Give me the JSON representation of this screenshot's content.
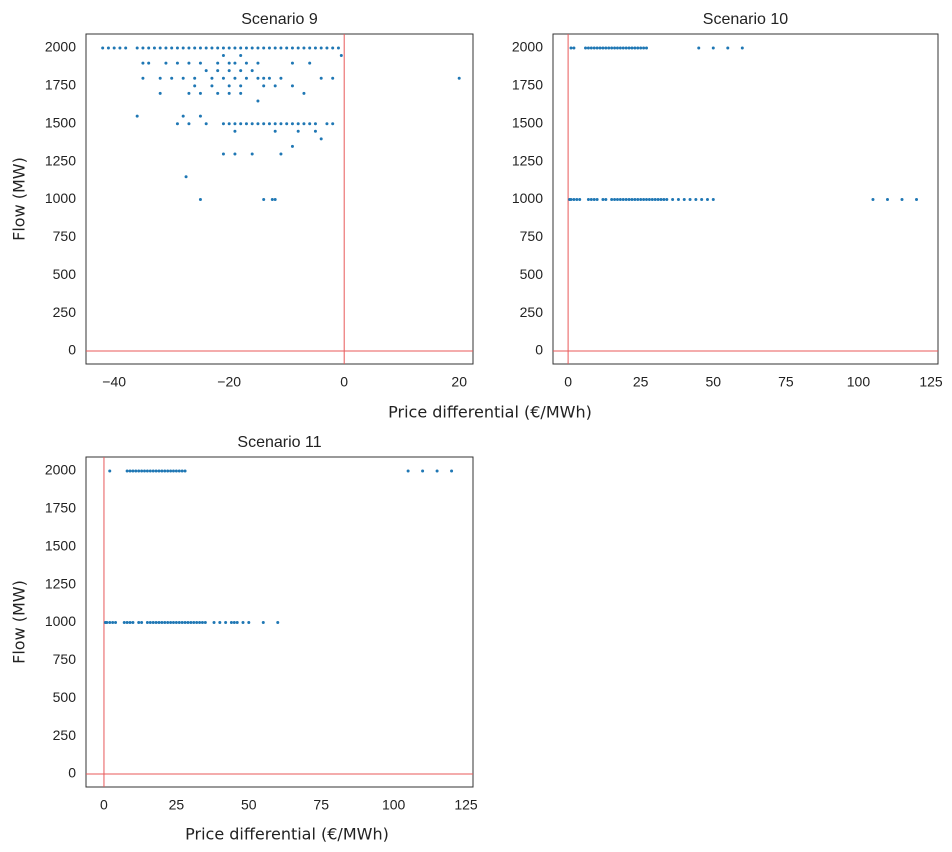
{
  "chart_data": [
    {
      "type": "scatter",
      "title": "Scenario 9",
      "ylabel": "Flow (MW)",
      "color": "#1f77b4",
      "xlim": [
        -44.9,
        22.4
      ],
      "ylim": [
        -86,
        2092
      ],
      "xticks": [
        {
          "value": -40,
          "label": "−40"
        },
        {
          "value": -20,
          "label": "−20"
        },
        0,
        20
      ],
      "yticks": [
        0,
        250,
        500,
        750,
        1000,
        1250,
        1500,
        1750,
        2000
      ],
      "reference_lines": {
        "x": 0,
        "y": 0,
        "color": "#e8595a"
      },
      "points": [
        [
          -42,
          2000
        ],
        [
          -41,
          2000
        ],
        [
          -40,
          2000
        ],
        [
          -39,
          2000
        ],
        [
          -38,
          2000
        ],
        [
          -36,
          2000
        ],
        [
          -35,
          2000
        ],
        [
          -34,
          2000
        ],
        [
          -33,
          2000
        ],
        [
          -32,
          2000
        ],
        [
          -31,
          2000
        ],
        [
          -30,
          2000
        ],
        [
          -29,
          2000
        ],
        [
          -28,
          2000
        ],
        [
          -27,
          2000
        ],
        [
          -26,
          2000
        ],
        [
          -25,
          2000
        ],
        [
          -24,
          2000
        ],
        [
          -23,
          2000
        ],
        [
          -22,
          2000
        ],
        [
          -21,
          2000
        ],
        [
          -20,
          2000
        ],
        [
          -19,
          2000
        ],
        [
          -18,
          2000
        ],
        [
          -17,
          2000
        ],
        [
          -16,
          2000
        ],
        [
          -15,
          2000
        ],
        [
          -14,
          2000
        ],
        [
          -13,
          2000
        ],
        [
          -12,
          2000
        ],
        [
          -11,
          2000
        ],
        [
          -10,
          2000
        ],
        [
          -9,
          2000
        ],
        [
          -8,
          2000
        ],
        [
          -7,
          2000
        ],
        [
          -6,
          2000
        ],
        [
          -5,
          2000
        ],
        [
          -4,
          2000
        ],
        [
          -3,
          2000
        ],
        [
          -2,
          2000
        ],
        [
          -1,
          2000
        ],
        [
          -0.5,
          1950
        ],
        [
          -21,
          1950
        ],
        [
          -18,
          1950
        ],
        [
          -35,
          1900
        ],
        [
          -34,
          1900
        ],
        [
          -31,
          1900
        ],
        [
          -29,
          1900
        ],
        [
          -27,
          1900
        ],
        [
          -25,
          1900
        ],
        [
          -22,
          1900
        ],
        [
          -20,
          1900
        ],
        [
          -19,
          1900
        ],
        [
          -17,
          1900
        ],
        [
          -15,
          1900
        ],
        [
          -9,
          1900
        ],
        [
          -6,
          1900
        ],
        [
          -24,
          1850
        ],
        [
          -22,
          1850
        ],
        [
          -20,
          1850
        ],
        [
          -18,
          1850
        ],
        [
          -16,
          1850
        ],
        [
          -35,
          1800
        ],
        [
          -32,
          1800
        ],
        [
          -30,
          1800
        ],
        [
          -28,
          1800
        ],
        [
          -26,
          1800
        ],
        [
          -23,
          1800
        ],
        [
          -21,
          1800
        ],
        [
          -19,
          1800
        ],
        [
          -17,
          1800
        ],
        [
          -15,
          1800
        ],
        [
          -14,
          1800
        ],
        [
          -13,
          1800
        ],
        [
          -11,
          1800
        ],
        [
          -4,
          1800
        ],
        [
          -2,
          1800
        ],
        [
          20,
          1800
        ],
        [
          -26,
          1750
        ],
        [
          -23,
          1750
        ],
        [
          -20,
          1750
        ],
        [
          -18,
          1750
        ],
        [
          -14,
          1750
        ],
        [
          -12,
          1750
        ],
        [
          -9,
          1750
        ],
        [
          -32,
          1700
        ],
        [
          -27,
          1700
        ],
        [
          -25,
          1700
        ],
        [
          -22,
          1700
        ],
        [
          -20,
          1700
        ],
        [
          -18,
          1700
        ],
        [
          -7,
          1700
        ],
        [
          -15,
          1650
        ],
        [
          -36,
          1550
        ],
        [
          -28,
          1550
        ],
        [
          -25,
          1550
        ],
        [
          -29,
          1500
        ],
        [
          -27,
          1500
        ],
        [
          -24,
          1500
        ],
        [
          -21,
          1500
        ],
        [
          -20,
          1500
        ],
        [
          -19,
          1500
        ],
        [
          -18,
          1500
        ],
        [
          -17,
          1500
        ],
        [
          -16,
          1500
        ],
        [
          -15,
          1500
        ],
        [
          -14,
          1500
        ],
        [
          -13,
          1500
        ],
        [
          -12,
          1500
        ],
        [
          -11,
          1500
        ],
        [
          -10,
          1500
        ],
        [
          -9,
          1500
        ],
        [
          -8,
          1500
        ],
        [
          -7,
          1500
        ],
        [
          -6,
          1500
        ],
        [
          -5,
          1500
        ],
        [
          -3,
          1500
        ],
        [
          -2,
          1500
        ],
        [
          -19,
          1450
        ],
        [
          -12,
          1450
        ],
        [
          -8,
          1450
        ],
        [
          -5,
          1450
        ],
        [
          -4,
          1400
        ],
        [
          -9,
          1350
        ],
        [
          -21,
          1300
        ],
        [
          -19,
          1300
        ],
        [
          -16,
          1300
        ],
        [
          -11,
          1300
        ],
        [
          -27.5,
          1150
        ],
        [
          -25,
          1000
        ],
        [
          -14,
          1000
        ],
        [
          -12.5,
          1000
        ],
        [
          -12,
          1000
        ]
      ]
    },
    {
      "type": "scatter",
      "title": "Scenario 10",
      "xlabel": "Price differential (€/MWh)",
      "color": "#1f77b4",
      "xlim": [
        -5.2,
        127.4
      ],
      "ylim": [
        -86,
        2092
      ],
      "xticks": [
        0,
        25,
        50,
        75,
        100,
        125
      ],
      "yticks": [
        0,
        250,
        500,
        750,
        1000,
        1250,
        1500,
        1750,
        2000
      ],
      "reference_lines": {
        "x": 0,
        "y": 0,
        "color": "#e8595a"
      },
      "points": [
        [
          1,
          2000
        ],
        [
          2,
          2000
        ],
        [
          6,
          2000
        ],
        [
          7,
          2000
        ],
        [
          8,
          2000
        ],
        [
          9,
          2000
        ],
        [
          10,
          2000
        ],
        [
          11,
          2000
        ],
        [
          12,
          2000
        ],
        [
          13,
          2000
        ],
        [
          14,
          2000
        ],
        [
          15,
          2000
        ],
        [
          16,
          2000
        ],
        [
          17,
          2000
        ],
        [
          18,
          2000
        ],
        [
          19,
          2000
        ],
        [
          20,
          2000
        ],
        [
          21,
          2000
        ],
        [
          22,
          2000
        ],
        [
          23,
          2000
        ],
        [
          24,
          2000
        ],
        [
          25,
          2000
        ],
        [
          26,
          2000
        ],
        [
          27,
          2000
        ],
        [
          45,
          2000
        ],
        [
          50,
          2000
        ],
        [
          55,
          2000
        ],
        [
          60,
          2000
        ],
        [
          0.5,
          1000
        ],
        [
          1,
          1000
        ],
        [
          2,
          1000
        ],
        [
          3,
          1000
        ],
        [
          4,
          1000
        ],
        [
          7,
          1000
        ],
        [
          8,
          1000
        ],
        [
          9,
          1000
        ],
        [
          10,
          1000
        ],
        [
          12,
          1000
        ],
        [
          13,
          1000
        ],
        [
          15,
          1000
        ],
        [
          16,
          1000
        ],
        [
          17,
          1000
        ],
        [
          18,
          1000
        ],
        [
          19,
          1000
        ],
        [
          20,
          1000
        ],
        [
          21,
          1000
        ],
        [
          22,
          1000
        ],
        [
          23,
          1000
        ],
        [
          24,
          1000
        ],
        [
          25,
          1000
        ],
        [
          26,
          1000
        ],
        [
          27,
          1000
        ],
        [
          28,
          1000
        ],
        [
          29,
          1000
        ],
        [
          30,
          1000
        ],
        [
          31,
          1000
        ],
        [
          32,
          1000
        ],
        [
          33,
          1000
        ],
        [
          34,
          1000
        ],
        [
          36,
          1000
        ],
        [
          38,
          1000
        ],
        [
          40,
          1000
        ],
        [
          42,
          1000
        ],
        [
          44,
          1000
        ],
        [
          46,
          1000
        ],
        [
          48,
          1000
        ],
        [
          50,
          1000
        ],
        [
          105,
          1000
        ],
        [
          110,
          1000
        ],
        [
          115,
          1000
        ],
        [
          120,
          1000
        ]
      ]
    },
    {
      "type": "scatter",
      "title": "Scenario 11",
      "ylabel": "Flow (MW)",
      "xlabel": "Price differential (€/MWh)",
      "color": "#1f77b4",
      "xlim": [
        -6.2,
        127.4
      ],
      "ylim": [
        -86,
        2092
      ],
      "xticks": [
        0,
        25,
        50,
        75,
        100,
        125
      ],
      "yticks": [
        0,
        250,
        500,
        750,
        1000,
        1250,
        1500,
        1750,
        2000
      ],
      "reference_lines": {
        "x": 0,
        "y": 0,
        "color": "#e8595a"
      },
      "points": [
        [
          2,
          2000
        ],
        [
          8,
          2000
        ],
        [
          9,
          2000
        ],
        [
          10,
          2000
        ],
        [
          11,
          2000
        ],
        [
          12,
          2000
        ],
        [
          13,
          2000
        ],
        [
          14,
          2000
        ],
        [
          15,
          2000
        ],
        [
          16,
          2000
        ],
        [
          17,
          2000
        ],
        [
          18,
          2000
        ],
        [
          19,
          2000
        ],
        [
          20,
          2000
        ],
        [
          21,
          2000
        ],
        [
          22,
          2000
        ],
        [
          23,
          2000
        ],
        [
          24,
          2000
        ],
        [
          25,
          2000
        ],
        [
          26,
          2000
        ],
        [
          27,
          2000
        ],
        [
          28,
          2000
        ],
        [
          105,
          2000
        ],
        [
          110,
          2000
        ],
        [
          115,
          2000
        ],
        [
          120,
          2000
        ],
        [
          0.5,
          1000
        ],
        [
          1,
          1000
        ],
        [
          2,
          1000
        ],
        [
          3,
          1000
        ],
        [
          4,
          1000
        ],
        [
          7,
          1000
        ],
        [
          8,
          1000
        ],
        [
          9,
          1000
        ],
        [
          10,
          1000
        ],
        [
          12,
          1000
        ],
        [
          13,
          1000
        ],
        [
          15,
          1000
        ],
        [
          16,
          1000
        ],
        [
          17,
          1000
        ],
        [
          18,
          1000
        ],
        [
          19,
          1000
        ],
        [
          20,
          1000
        ],
        [
          21,
          1000
        ],
        [
          22,
          1000
        ],
        [
          23,
          1000
        ],
        [
          24,
          1000
        ],
        [
          25,
          1000
        ],
        [
          26,
          1000
        ],
        [
          27,
          1000
        ],
        [
          28,
          1000
        ],
        [
          29,
          1000
        ],
        [
          30,
          1000
        ],
        [
          31,
          1000
        ],
        [
          32,
          1000
        ],
        [
          33,
          1000
        ],
        [
          34,
          1000
        ],
        [
          35,
          1000
        ],
        [
          38,
          1000
        ],
        [
          40,
          1000
        ],
        [
          42,
          1000
        ],
        [
          44,
          1000
        ],
        [
          45,
          1000
        ],
        [
          46,
          1000
        ],
        [
          48,
          1000
        ],
        [
          50,
          1000
        ],
        [
          55,
          1000
        ],
        [
          60,
          1000
        ]
      ]
    }
  ]
}
